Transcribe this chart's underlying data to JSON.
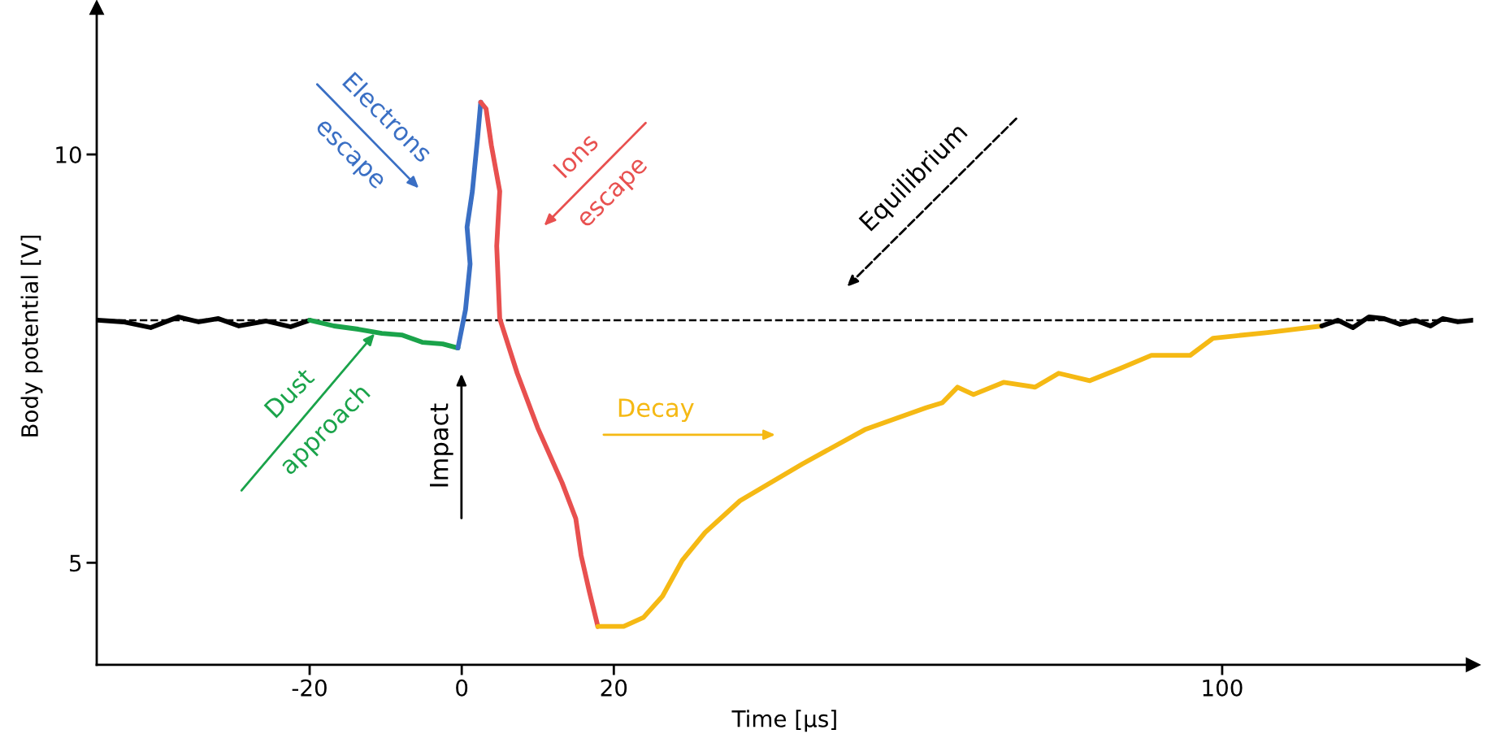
{
  "chart_data": {
    "type": "line",
    "xlabel": "Time [μs]",
    "ylabel": "Body potential [V]",
    "xlim": [
      -48,
      133
    ],
    "ylim": [
      3.75,
      11.8
    ],
    "xticks": [
      -20,
      0,
      20,
      100
    ],
    "yticks": [
      5,
      10
    ],
    "grid": false,
    "legend": false,
    "marker": "none",
    "line_style": "solid",
    "ref_lines": [
      {
        "axis": "y",
        "value": 7.97,
        "color": "#000000",
        "line_style": "dashed"
      }
    ],
    "series": [
      {
        "color": "#000000",
        "x": [
          -47.9,
          -44.5,
          -40.9,
          -37.3,
          -34.6,
          -32.0,
          -29.3,
          -25.7,
          -22.5,
          -20.0
        ],
        "values": [
          7.97,
          7.95,
          7.88,
          8.01,
          7.95,
          7.99,
          7.9,
          7.96,
          7.89,
          7.97
        ]
      },
      {
        "color": "#1aa34a",
        "x": [
          -20,
          -16.8,
          -13.6,
          -10.5,
          -7.9,
          -5.2,
          -2.5,
          -0.5
        ],
        "values": [
          7.97,
          7.9,
          7.86,
          7.81,
          7.79,
          7.7,
          7.68,
          7.63
        ]
      },
      {
        "color": "#3a6fc4",
        "x": [
          -0.5,
          0.5,
          1.1,
          0.7,
          1.4,
          2.1,
          2.5
        ],
        "values": [
          7.63,
          8.1,
          8.66,
          9.11,
          9.55,
          10.22,
          10.64
        ]
      },
      {
        "color": "#e8504f",
        "x": [
          2.5,
          3.2,
          3.9,
          5.0,
          4.6,
          5.0,
          7.3,
          10.0,
          13.2,
          15.0,
          15.7,
          16.8,
          17.9
        ],
        "values": [
          10.64,
          10.56,
          10.11,
          9.55,
          8.88,
          7.99,
          7.32,
          6.65,
          5.98,
          5.54,
          5.09,
          4.64,
          4.22
        ]
      },
      {
        "color": "#f5b914",
        "x": [
          17.9,
          21.3,
          23.9,
          26.4,
          29.0,
          32.0,
          36.6,
          44.8,
          53.0,
          61.1,
          63.2,
          65.2,
          67.3,
          71.3,
          75.4,
          78.5,
          82.6,
          86.6,
          90.7,
          95.8,
          98.8,
          106.0,
          113.1
        ],
        "values": [
          4.22,
          4.22,
          4.33,
          4.59,
          5.03,
          5.37,
          5.76,
          6.21,
          6.63,
          6.9,
          6.96,
          7.15,
          7.06,
          7.21,
          7.15,
          7.32,
          7.23,
          7.38,
          7.54,
          7.54,
          7.75,
          7.82,
          7.9
        ]
      },
      {
        "color": "#000000",
        "x": [
          113.1,
          115.2,
          117.2,
          119.3,
          121.3,
          123.4,
          125.4,
          127.4,
          129.0,
          131.0,
          133.0
        ],
        "values": [
          7.9,
          7.97,
          7.88,
          8.01,
          7.99,
          7.92,
          7.97,
          7.9,
          7.99,
          7.95,
          7.97
        ]
      }
    ],
    "annotations": [
      "Electrons\nescape",
      "Ions\nescape",
      "Equilibrium",
      "Dust\napproach",
      "Impact",
      "Decay"
    ]
  }
}
